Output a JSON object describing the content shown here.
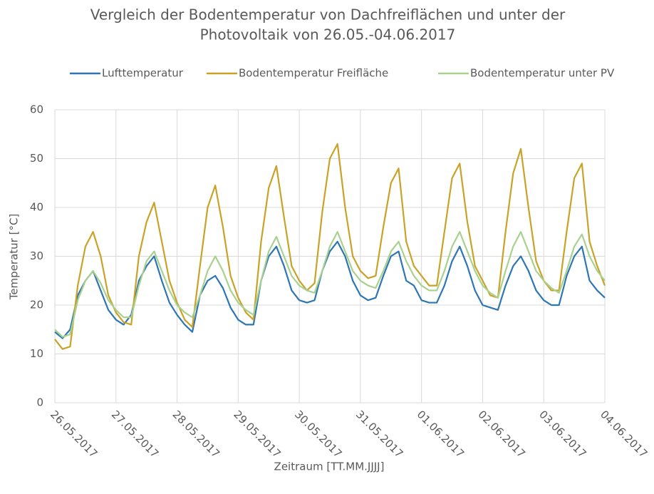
{
  "chart_data": {
    "type": "line",
    "title": [
      "Vergleich der Bodentemperatur von Dachfreiflächen und unter der",
      "Photovoltaik von 26.05.-04.06.2017"
    ],
    "x_label": "Zeitraum [TT.MM.JJJJ]",
    "y_label": "Temperatur [°C]",
    "x": [
      0,
      0.125,
      0.25,
      0.375,
      0.5,
      0.625,
      0.75,
      0.875,
      1,
      1.125,
      1.25,
      1.375,
      1.5,
      1.625,
      1.75,
      1.875,
      2,
      2.125,
      2.25,
      2.375,
      2.5,
      2.625,
      2.75,
      2.875,
      3,
      3.125,
      3.25,
      3.375,
      3.5,
      3.625,
      3.75,
      3.875,
      4,
      4.125,
      4.25,
      4.375,
      4.5,
      4.625,
      4.75,
      4.875,
      5,
      5.125,
      5.25,
      5.375,
      5.5,
      5.625,
      5.75,
      5.875,
      6,
      6.125,
      6.25,
      6.375,
      6.5,
      6.625,
      6.75,
      6.875,
      7,
      7.125,
      7.25,
      7.375,
      7.5,
      7.625,
      7.75,
      7.875,
      8,
      8.125,
      8.25,
      8.375,
      8.5,
      8.625,
      8.75,
      8.875,
      9
    ],
    "series": [
      {
        "name": "Lufttemperatur",
        "color": "#2e75b6",
        "values": [
          14.5,
          13.2,
          15,
          22,
          25,
          27,
          23,
          19,
          17,
          16,
          18,
          25,
          28,
          30,
          25,
          20.5,
          18,
          16,
          14.5,
          22,
          25,
          26,
          23.5,
          19.5,
          17,
          16,
          16,
          25,
          30,
          32,
          28,
          23,
          21,
          20.5,
          21,
          27,
          31,
          33,
          30,
          25,
          22,
          21,
          21.5,
          26,
          30,
          31,
          25,
          24,
          21,
          20.5,
          20.5,
          24,
          29,
          32,
          28,
          23,
          20,
          19.5,
          19,
          24,
          28,
          30,
          27,
          23,
          21,
          20,
          20,
          26,
          30,
          32,
          25,
          23,
          21.5
        ]
      },
      {
        "name": "Bodentemperatur Freifläche",
        "color": "#c9a227",
        "values": [
          13,
          11,
          11.5,
          24,
          32,
          35,
          30,
          22,
          18.5,
          16.5,
          16,
          30,
          37,
          41,
          33,
          25,
          20.5,
          17,
          15.5,
          28,
          40,
          44.5,
          36,
          26,
          21.5,
          18.5,
          17,
          33,
          44,
          48.5,
          38,
          28,
          25,
          23,
          24.5,
          39,
          50,
          53,
          40,
          30,
          27,
          25.5,
          26,
          36,
          45,
          48,
          33,
          28,
          26,
          24,
          24,
          35,
          46,
          49,
          37,
          28,
          25,
          22,
          21.5,
          35,
          47,
          52,
          40,
          29,
          25,
          23,
          23,
          35,
          46,
          49,
          33,
          28,
          24
        ]
      },
      {
        "name": "Bodentemperatur unter PV",
        "color": "#a9d18e",
        "values": [
          15,
          13.5,
          14,
          21,
          25,
          27,
          24.5,
          21,
          19,
          17.5,
          17.5,
          24,
          29,
          31,
          27,
          23,
          20,
          18.5,
          17.5,
          22,
          27,
          30,
          27,
          23,
          20.5,
          19,
          18,
          25,
          31,
          34,
          30,
          26,
          24,
          23,
          22.5,
          27,
          32,
          35,
          31,
          27,
          25,
          24,
          23.5,
          27,
          31,
          33,
          29,
          26,
          24,
          23,
          23,
          27,
          32,
          35,
          31,
          27,
          24,
          22.5,
          21.5,
          27,
          32,
          35,
          31,
          27,
          25,
          23.5,
          22.5,
          27,
          32,
          34.5,
          30,
          27,
          25
        ]
      }
    ],
    "xlim": [
      0,
      9
    ],
    "xticks": [
      {
        "value": 0,
        "label": "26.05.2017"
      },
      {
        "value": 1,
        "label": "27.05.2017"
      },
      {
        "value": 2,
        "label": "28.05.2017"
      },
      {
        "value": 3,
        "label": "29.05.2017"
      },
      {
        "value": 4,
        "label": "30.05.2017"
      },
      {
        "value": 5,
        "label": "31.05.2017"
      },
      {
        "value": 6,
        "label": "01.06.2017"
      },
      {
        "value": 7,
        "label": "02.06.2017"
      },
      {
        "value": 8,
        "label": "03.06.2017"
      },
      {
        "value": 9,
        "label": "04.06.2017"
      }
    ],
    "ylim": [
      0,
      60
    ],
    "yticks": [
      0,
      10,
      20,
      30,
      40,
      50,
      60
    ],
    "grid": true,
    "legend": "top"
  }
}
